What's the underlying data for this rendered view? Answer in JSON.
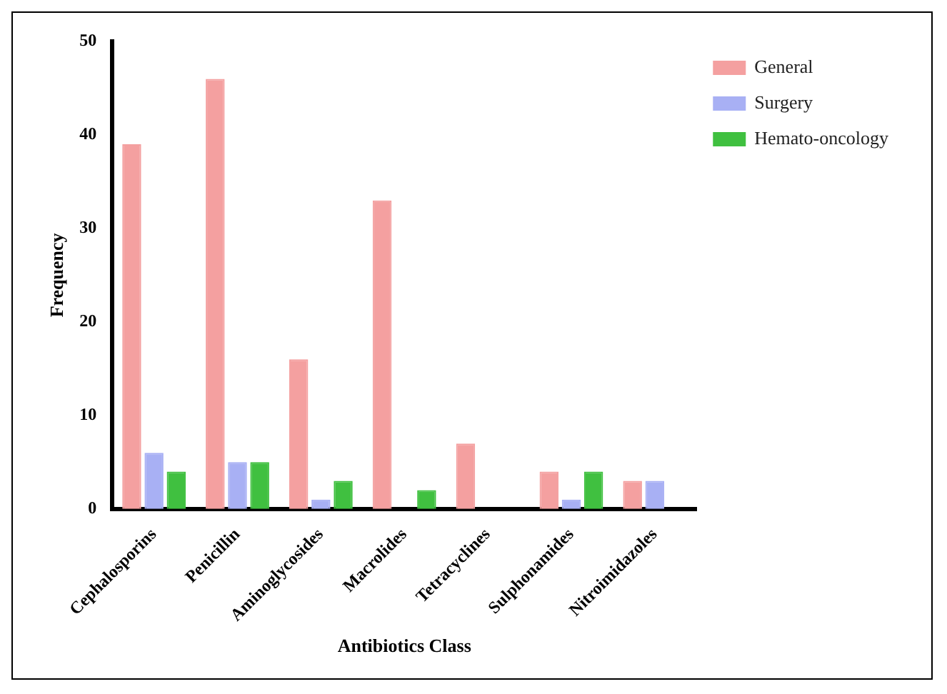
{
  "chart_data": {
    "type": "bar",
    "xlabel": "Antibiotics Class",
    "ylabel": "Frequency",
    "categories": [
      "Cephalosporins",
      "Penicillin",
      "Aminoglycosides",
      "Macrolides",
      "Tetracyclines",
      "Sulphonamides",
      "Nitroimidazoles"
    ],
    "series": [
      {
        "name": "General",
        "color": "#f4a0a0",
        "values": [
          39,
          46,
          16,
          33,
          7,
          4,
          3
        ]
      },
      {
        "name": "Surgery",
        "color": "#a8b0f4",
        "values": [
          6,
          5,
          1,
          0,
          0,
          1,
          3
        ]
      },
      {
        "name": "Hemato-oncology",
        "color": "#40c040",
        "values": [
          4,
          5,
          3,
          2,
          0,
          4,
          0
        ]
      }
    ],
    "ylim": [
      0,
      50
    ],
    "yticks": [
      0,
      10,
      20,
      30,
      40,
      50
    ],
    "grid": false,
    "legend": "top right"
  }
}
